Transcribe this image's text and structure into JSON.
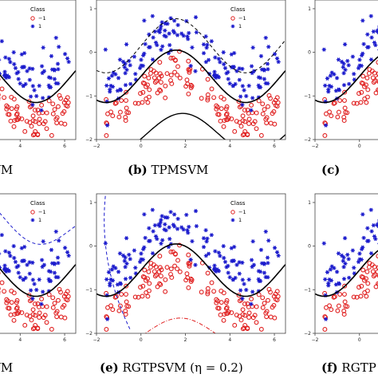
{
  "colors": {
    "class_neg": "#e02020",
    "class_pos": "#1a1acc",
    "boundary": "#000000",
    "plus_plane": "#1a1acc",
    "minus_plane": "#e02020",
    "plot_bg": "#ffffff"
  },
  "legend": {
    "title": "Class",
    "entries": [
      "−1",
      "1"
    ]
  },
  "chart_data": [
    {
      "panel": "a",
      "caption_tag": "",
      "caption_text": "VM",
      "type": "scatter",
      "xlim": [
        -2,
        6.5
      ],
      "ylim": [
        -2,
        1.2
      ],
      "xticks": [
        4,
        6
      ],
      "yticks": [],
      "legend": true,
      "boundaries": [
        "solid"
      ],
      "series": [
        {
          "class": "-1"
        },
        {
          "class": "1"
        }
      ]
    },
    {
      "panel": "b",
      "caption_tag": "(b)",
      "caption_text": "TPMSVM",
      "type": "scatter",
      "xlim": [
        -2,
        6.5
      ],
      "ylim": [
        -2,
        1.2
      ],
      "xticks": [
        -2,
        0,
        2,
        4,
        6
      ],
      "yticks": [
        1,
        0,
        -1,
        -2
      ],
      "legend": true,
      "boundaries": [
        "solid",
        "solid-low",
        "dashed-top"
      ],
      "series": [
        {
          "class": "-1"
        },
        {
          "class": "1"
        }
      ]
    },
    {
      "panel": "c",
      "caption_tag": "(c)",
      "caption_text": "",
      "type": "scatter",
      "xlim": [
        -2,
        6.5
      ],
      "ylim": [
        -2,
        1.2
      ],
      "xticks": [
        -2,
        0
      ],
      "yticks": [
        1,
        0,
        -1,
        -2
      ],
      "legend": false,
      "boundaries": [
        "solid"
      ],
      "series": [
        {
          "class": "-1"
        },
        {
          "class": "1"
        }
      ]
    },
    {
      "panel": "d",
      "caption_tag": "",
      "caption_text": "VM",
      "type": "scatter",
      "xlim": [
        -2,
        6.5
      ],
      "ylim": [
        -2,
        1.2
      ],
      "xticks": [
        4,
        6
      ],
      "yticks": [],
      "legend": true,
      "boundaries": [
        "solid",
        "dashed-blue-wide"
      ],
      "series": [
        {
          "class": "-1"
        },
        {
          "class": "1"
        }
      ]
    },
    {
      "panel": "e",
      "caption_tag": "(e)",
      "caption_text": "RGTPSVM (η = 0.2)",
      "type": "scatter",
      "xlim": [
        -2,
        6.5
      ],
      "ylim": [
        -2,
        1.2
      ],
      "xticks": [
        -2,
        0,
        2,
        4,
        6
      ],
      "yticks": [
        1,
        0,
        -1,
        -2
      ],
      "legend": true,
      "boundaries": [
        "solid",
        "dashed-blue-left",
        "dashdot-red-low"
      ],
      "series": [
        {
          "class": "-1"
        },
        {
          "class": "1"
        }
      ]
    },
    {
      "panel": "f",
      "caption_tag": "(f)",
      "caption_text": "RGTP",
      "type": "scatter",
      "xlim": [
        -2,
        6.5
      ],
      "ylim": [
        -2,
        1.2
      ],
      "xticks": [
        -2,
        0
      ],
      "yticks": [
        1,
        0,
        -1,
        -2
      ],
      "legend": false,
      "boundaries": [
        "solid"
      ],
      "series": [
        {
          "class": "-1"
        },
        {
          "class": "1"
        }
      ]
    }
  ]
}
